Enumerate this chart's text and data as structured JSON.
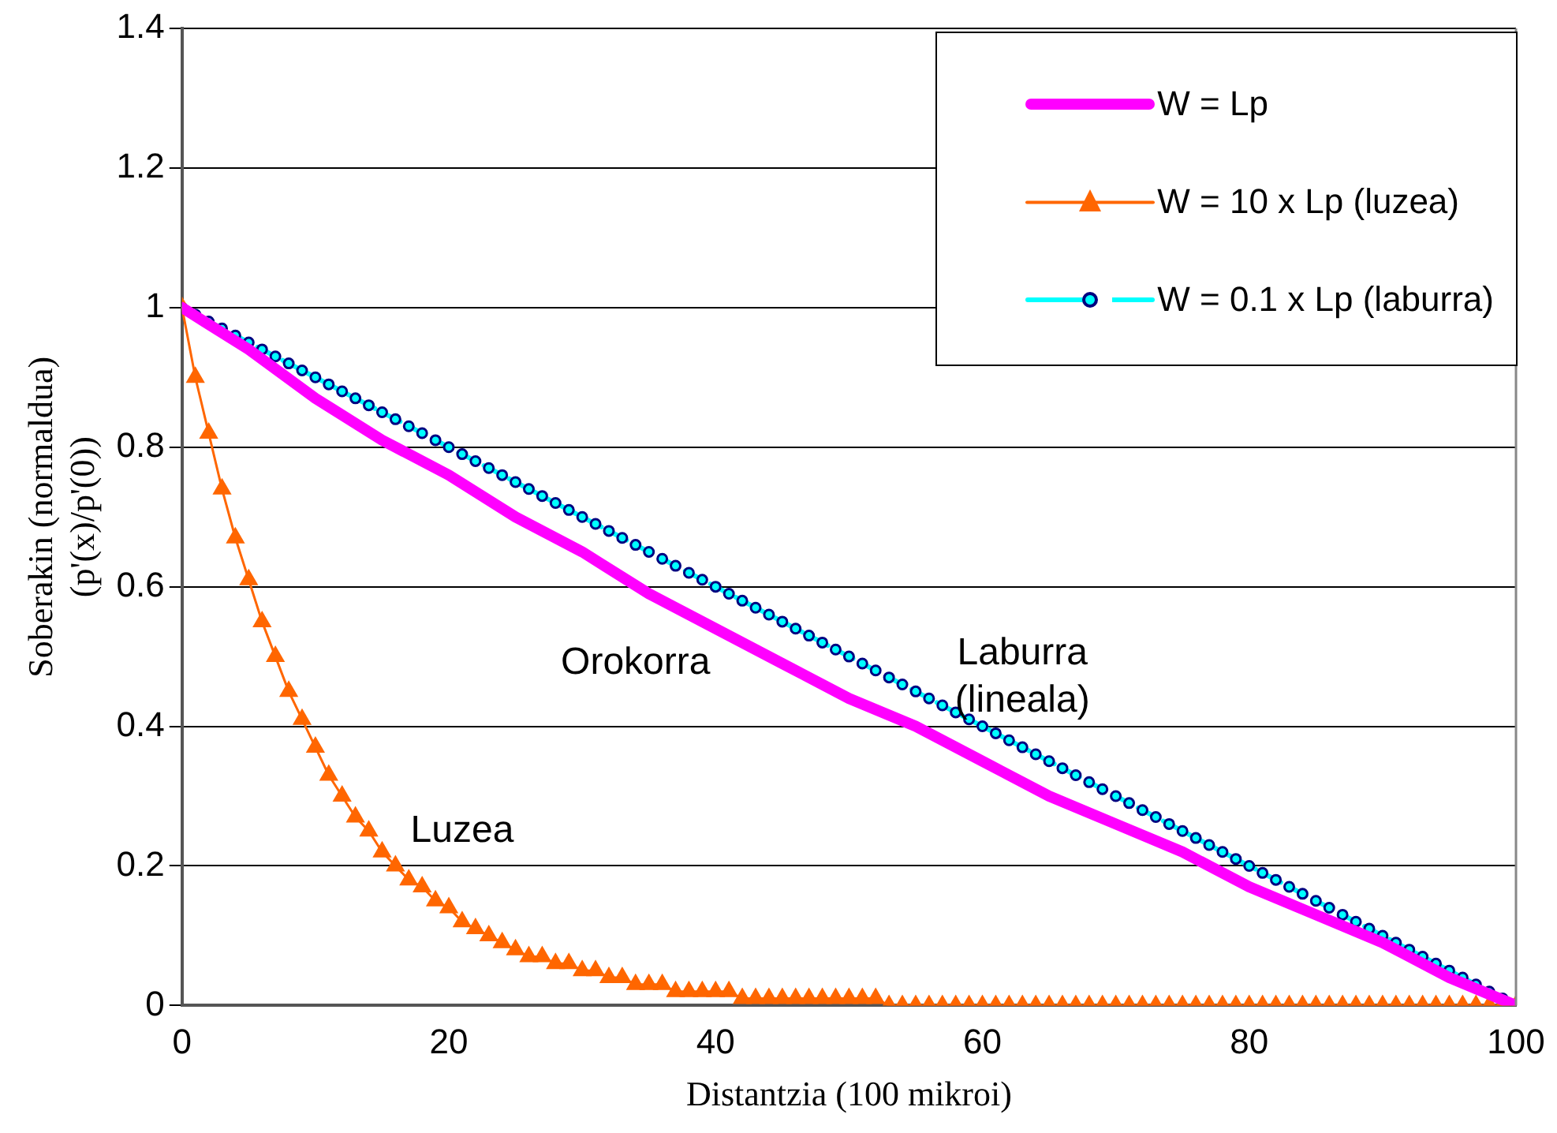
{
  "chart_data": {
    "type": "line",
    "xlabel": "Distantzia (100 mikroi)",
    "ylabel": "Soberakin (normaldua) (p'(x)/p'(0))",
    "xlim": [
      0,
      100
    ],
    "xticks": [
      0,
      20,
      40,
      60,
      80,
      100
    ],
    "ylim": [
      0,
      1.4
    ],
    "yticks": [
      0,
      0.2,
      0.4,
      0.6,
      0.8,
      1,
      1.2,
      1.4
    ],
    "grid": "y",
    "legend": "top right",
    "annotations": [
      "Orokorra",
      "Laburra (lineala)",
      "Luzea"
    ],
    "series": [
      {
        "name": "W = Lp",
        "color": "#ff00ff",
        "marker": "none",
        "line_style": "solid",
        "x": [
          0,
          5,
          10,
          15,
          20,
          25,
          30,
          35,
          40,
          45,
          50,
          55,
          60,
          65,
          70,
          75,
          80,
          85,
          90,
          95,
          100
        ],
        "values": [
          1,
          0.94,
          0.87,
          0.81,
          0.76,
          0.7,
          0.65,
          0.59,
          0.54,
          0.49,
          0.44,
          0.4,
          0.35,
          0.3,
          0.26,
          0.22,
          0.17,
          0.13,
          0.09,
          0.04,
          0
        ]
      },
      {
        "name": "W = 10 x Lp (luzea)",
        "color": "#ff6600",
        "marker": "triangle",
        "line_style": "solid",
        "x": [
          0,
          1,
          2,
          3,
          4,
          5,
          6,
          7,
          8,
          9,
          10,
          11,
          12,
          13,
          14,
          15,
          16,
          17,
          18,
          19,
          20,
          21,
          22,
          23,
          24,
          25,
          26,
          27,
          28,
          29,
          30,
          31,
          32,
          33,
          34,
          35,
          36,
          37,
          38,
          39,
          40,
          41,
          42,
          43,
          44,
          45,
          46,
          47,
          48,
          49,
          50,
          51,
          52,
          53,
          54,
          55,
          56,
          57,
          58,
          59,
          60,
          61,
          62,
          63,
          64,
          65,
          66,
          67,
          68,
          69,
          70,
          71,
          72,
          73,
          74,
          75,
          76,
          77,
          78,
          79,
          80,
          81,
          82,
          83,
          84,
          85,
          86,
          87,
          88,
          89,
          90,
          91,
          92,
          93,
          94,
          95,
          96,
          97,
          98,
          99,
          100
        ],
        "values": [
          1,
          0.9,
          0.82,
          0.74,
          0.67,
          0.61,
          0.55,
          0.5,
          0.45,
          0.41,
          0.37,
          0.33,
          0.3,
          0.27,
          0.25,
          0.22,
          0.2,
          0.18,
          0.17,
          0.15,
          0.14,
          0.12,
          0.11,
          0.1,
          0.09,
          0.08,
          0.07,
          0.07,
          0.06,
          0.06,
          0.05,
          0.05,
          0.04,
          0.04,
          0.03,
          0.03,
          0.03,
          0.02,
          0.02,
          0.02,
          0.02,
          0.02,
          0.01,
          0.01,
          0.01,
          0.01,
          0.01,
          0.01,
          0.01,
          0.01,
          0.01,
          0.01,
          0.01,
          0,
          0,
          0,
          0,
          0,
          0,
          0,
          0,
          0,
          0,
          0,
          0,
          0,
          0,
          0,
          0,
          0,
          0,
          0,
          0,
          0,
          0,
          0,
          0,
          0,
          0,
          0,
          0,
          0,
          0,
          0,
          0,
          0,
          0,
          0,
          0,
          0,
          0,
          0,
          0,
          0,
          0,
          0,
          0,
          0,
          0,
          0,
          0
        ]
      },
      {
        "name": "W = 0.1 x Lp (laburra)",
        "color": "#00ffff",
        "marker": "circle",
        "line_style": "dashed",
        "x": [
          0,
          1,
          2,
          3,
          4,
          5,
          6,
          7,
          8,
          9,
          10,
          11,
          12,
          13,
          14,
          15,
          16,
          17,
          18,
          19,
          20,
          21,
          22,
          23,
          24,
          25,
          26,
          27,
          28,
          29,
          30,
          31,
          32,
          33,
          34,
          35,
          36,
          37,
          38,
          39,
          40,
          41,
          42,
          43,
          44,
          45,
          46,
          47,
          48,
          49,
          50,
          51,
          52,
          53,
          54,
          55,
          56,
          57,
          58,
          59,
          60,
          61,
          62,
          63,
          64,
          65,
          66,
          67,
          68,
          69,
          70,
          71,
          72,
          73,
          74,
          75,
          76,
          77,
          78,
          79,
          80,
          81,
          82,
          83,
          84,
          85,
          86,
          87,
          88,
          89,
          90,
          91,
          92,
          93,
          94,
          95,
          96,
          97,
          98,
          99,
          100
        ],
        "values": [
          1,
          0.99,
          0.98,
          0.97,
          0.96,
          0.95,
          0.94,
          0.93,
          0.92,
          0.91,
          0.9,
          0.89,
          0.88,
          0.87,
          0.86,
          0.85,
          0.84,
          0.83,
          0.82,
          0.81,
          0.8,
          0.79,
          0.78,
          0.77,
          0.76,
          0.75,
          0.74,
          0.73,
          0.72,
          0.71,
          0.7,
          0.69,
          0.68,
          0.67,
          0.66,
          0.65,
          0.64,
          0.63,
          0.62,
          0.61,
          0.6,
          0.59,
          0.58,
          0.57,
          0.56,
          0.55,
          0.54,
          0.53,
          0.52,
          0.51,
          0.5,
          0.49,
          0.48,
          0.47,
          0.46,
          0.45,
          0.44,
          0.43,
          0.42,
          0.41,
          0.4,
          0.39,
          0.38,
          0.37,
          0.36,
          0.35,
          0.34,
          0.33,
          0.32,
          0.31,
          0.3,
          0.29,
          0.28,
          0.27,
          0.26,
          0.25,
          0.24,
          0.23,
          0.22,
          0.21,
          0.2,
          0.19,
          0.18,
          0.17,
          0.16,
          0.15,
          0.14,
          0.13,
          0.12,
          0.11,
          0.1,
          0.09,
          0.08,
          0.07,
          0.06,
          0.05,
          0.04,
          0.03,
          0.02,
          0.01,
          0
        ]
      }
    ]
  }
}
